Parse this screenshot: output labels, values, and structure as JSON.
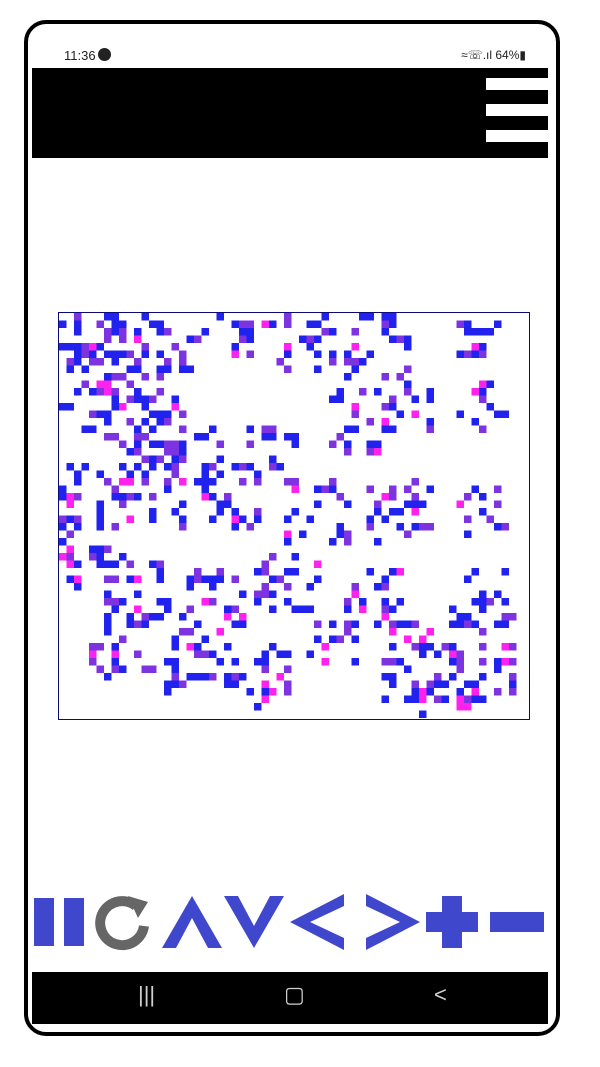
{
  "status_bar": {
    "time": "11:36",
    "right": "≈☏.ıl 64%▮"
  },
  "top_bar": {
    "menu_icon": "hamburger-menu-icon",
    "background": "#000000"
  },
  "board": {
    "colors": {
      "live": "#2222ee",
      "aging": "#7d34e0",
      "old": "#ff22ee",
      "border": "#0a0a7a"
    }
  },
  "controls": [
    {
      "name": "pause",
      "icon": "pause-icon"
    },
    {
      "name": "reset",
      "icon": "refresh-icon"
    },
    {
      "name": "up",
      "icon": "up-arrow-icon"
    },
    {
      "name": "down",
      "icon": "down-arrow-icon"
    },
    {
      "name": "left",
      "icon": "left-arrow-icon"
    },
    {
      "name": "right",
      "icon": "right-arrow-icon"
    },
    {
      "name": "zoom-in",
      "icon": "plus-icon"
    },
    {
      "name": "zoom-out",
      "icon": "minus-icon"
    }
  ],
  "nav_bar": {
    "recents_label": "|||",
    "home_label": "▢",
    "back_label": "<"
  },
  "colors": {
    "controls": "#3f48cc",
    "refresh": "#666666",
    "nav": "#000000"
  }
}
